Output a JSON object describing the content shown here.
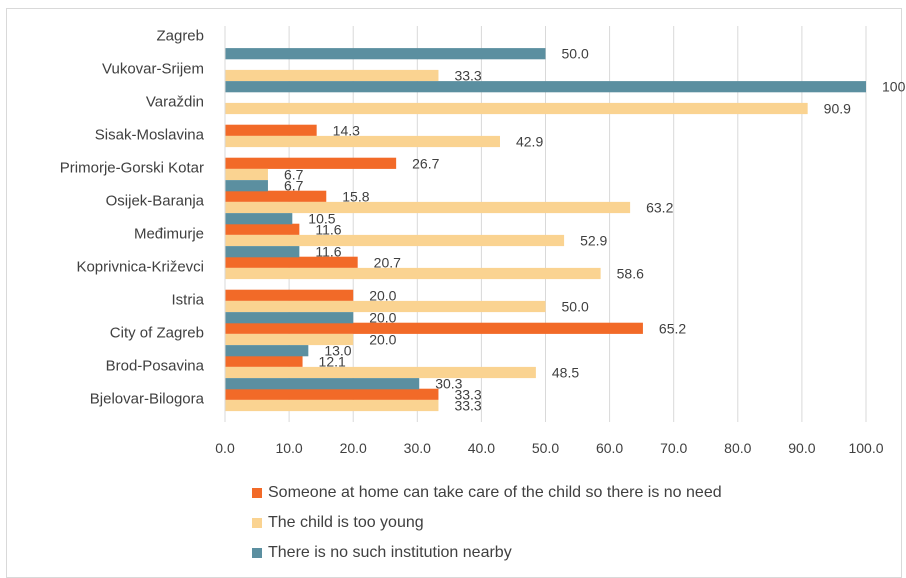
{
  "chart_data": {
    "type": "bar",
    "orientation": "horizontal",
    "categories": [
      "Zagreb",
      "Vukovar-Srijem",
      "Varaždin",
      "Sisak-Moslavina",
      "Primorje-Gorski Kotar",
      "Osijek-Baranja",
      "Međimurje",
      "Koprivnica-Križevci",
      "Istria",
      "City of Zagreb",
      "Brod-Posavina",
      "Bjelovar-Bilogora"
    ],
    "series": [
      {
        "name": "Someone at home can take care of the child so there is no need",
        "color": "#f26a28",
        "values": [
          null,
          null,
          null,
          14.3,
          26.7,
          15.8,
          11.6,
          20.7,
          20.0,
          65.2,
          12.1,
          33.3
        ]
      },
      {
        "name": "The child is too young",
        "color": "#fad391",
        "values": [
          null,
          33.3,
          90.9,
          42.9,
          6.7,
          63.2,
          52.9,
          58.6,
          50.0,
          20.0,
          48.5,
          33.3
        ]
      },
      {
        "name": "There is no such institution nearby",
        "color": "#5b8fa0",
        "values": [
          50.0,
          100.0,
          null,
          null,
          6.7,
          10.5,
          11.6,
          null,
          20.0,
          13.0,
          30.3,
          null
        ]
      }
    ],
    "xlim": [
      0,
      100
    ],
    "x_ticks": [
      "0.0",
      "10.0",
      "20.0",
      "30.0",
      "40.0",
      "50.0",
      "60.0",
      "70.0",
      "80.0",
      "90.0",
      "100.0"
    ],
    "grid": "vertical",
    "legend_position": "bottom",
    "title": "",
    "xlabel": "",
    "ylabel": ""
  }
}
